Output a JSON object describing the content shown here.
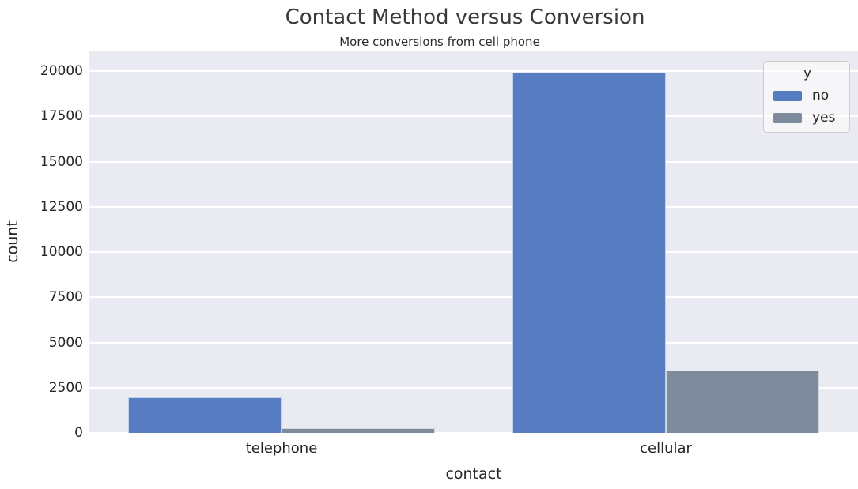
{
  "figure": {
    "title": "Contact Method versus Conversion",
    "subtitle": "More conversions from cell phone"
  },
  "chart_data": {
    "type": "bar",
    "title": "Contact Method versus Conversion",
    "subtitle": "More conversions from cell phone",
    "xlabel": "contact",
    "ylabel": "count",
    "categories": [
      "telephone",
      "cellular"
    ],
    "series": [
      {
        "name": "no",
        "color": "#587cc2",
        "values": [
          1950,
          19900
        ]
      },
      {
        "name": "yes",
        "color": "#7e8b9d",
        "values": [
          280,
          3450
        ]
      }
    ],
    "legend": {
      "title": "y",
      "position": "upper right"
    },
    "ylim": [
      0,
      21100
    ],
    "yticks": [
      0,
      2500,
      5000,
      7500,
      10000,
      12500,
      15000,
      17500,
      20000
    ],
    "grid": true,
    "grid_color": "#ffffff",
    "plot_background": "#eaeaf2",
    "text_color": "#262626"
  }
}
